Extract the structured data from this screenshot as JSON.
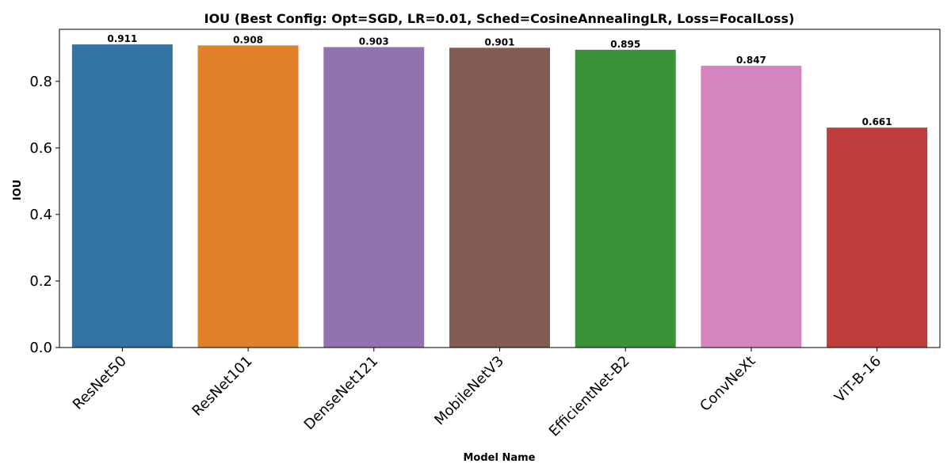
{
  "chart_data": {
    "type": "bar",
    "title": "IOU (Best Config: Opt=SGD, LR=0.01, Sched=CosineAnnealingLR, Loss=FocalLoss)",
    "xlabel": "Model Name",
    "ylabel": "IOU",
    "categories": [
      "ResNet50",
      "ResNet101",
      "DenseNet121",
      "MobileNetV3",
      "EfficientNet-B2",
      "ConvNeXt",
      "ViT-B-16"
    ],
    "values": [
      0.911,
      0.908,
      0.903,
      0.901,
      0.895,
      0.847,
      0.661
    ],
    "value_labels": [
      "0.911",
      "0.908",
      "0.903",
      "0.901",
      "0.895",
      "0.847",
      "0.661"
    ],
    "colors": [
      "#3274a1",
      "#e1812c",
      "#9372b2",
      "#845b53",
      "#3a923a",
      "#d684bd",
      "#c03d3e"
    ],
    "yticks": [
      0.0,
      0.2,
      0.4,
      0.6,
      0.8
    ],
    "ytick_labels": [
      "0.0",
      "0.2",
      "0.4",
      "0.6",
      "0.8"
    ],
    "ylim": [
      0,
      0.9565
    ],
    "grid": false,
    "legend": "none"
  }
}
